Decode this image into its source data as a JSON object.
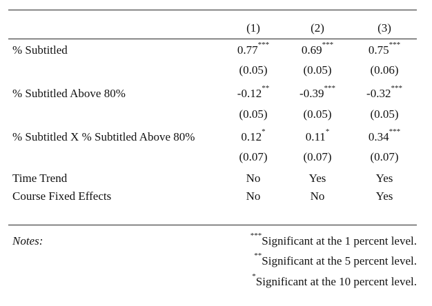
{
  "columns": [
    "(1)",
    "(2)",
    "(3)"
  ],
  "rows": [
    {
      "label": "% Subtitled",
      "coefs": [
        {
          "v": "0.77",
          "s": "***"
        },
        {
          "v": "0.69",
          "s": "***"
        },
        {
          "v": "0.75",
          "s": "***"
        }
      ],
      "ses": [
        "(0.05)",
        "(0.05)",
        "(0.06)"
      ]
    },
    {
      "label": "% Subtitled Above 80%",
      "coefs": [
        {
          "v": "-0.12",
          "s": "**"
        },
        {
          "v": "-0.39",
          "s": "***"
        },
        {
          "v": "-0.32",
          "s": "***"
        }
      ],
      "ses": [
        "(0.05)",
        "(0.05)",
        "(0.05)"
      ]
    },
    {
      "label": "% Subtitled X % Subtitled Above 80%",
      "coefs": [
        {
          "v": "0.12",
          "s": "*"
        },
        {
          "v": "0.11",
          "s": "*"
        },
        {
          "v": "0.34",
          "s": "***"
        }
      ],
      "ses": [
        "(0.07)",
        "(0.07)",
        "(0.07)"
      ]
    }
  ],
  "controls": [
    {
      "label": "Time Trend",
      "values": [
        "No",
        "Yes",
        "Yes"
      ]
    },
    {
      "label": "Course Fixed Effects",
      "values": [
        "No",
        "No",
        "Yes"
      ]
    }
  ],
  "notes": {
    "label": "Notes:",
    "items": [
      {
        "stars": "***",
        "text": "Significant at the 1 percent level."
      },
      {
        "stars": "**",
        "text": "Significant at the 5 percent level."
      },
      {
        "stars": "*",
        "text": "Significant at the 10 percent level."
      }
    ]
  }
}
